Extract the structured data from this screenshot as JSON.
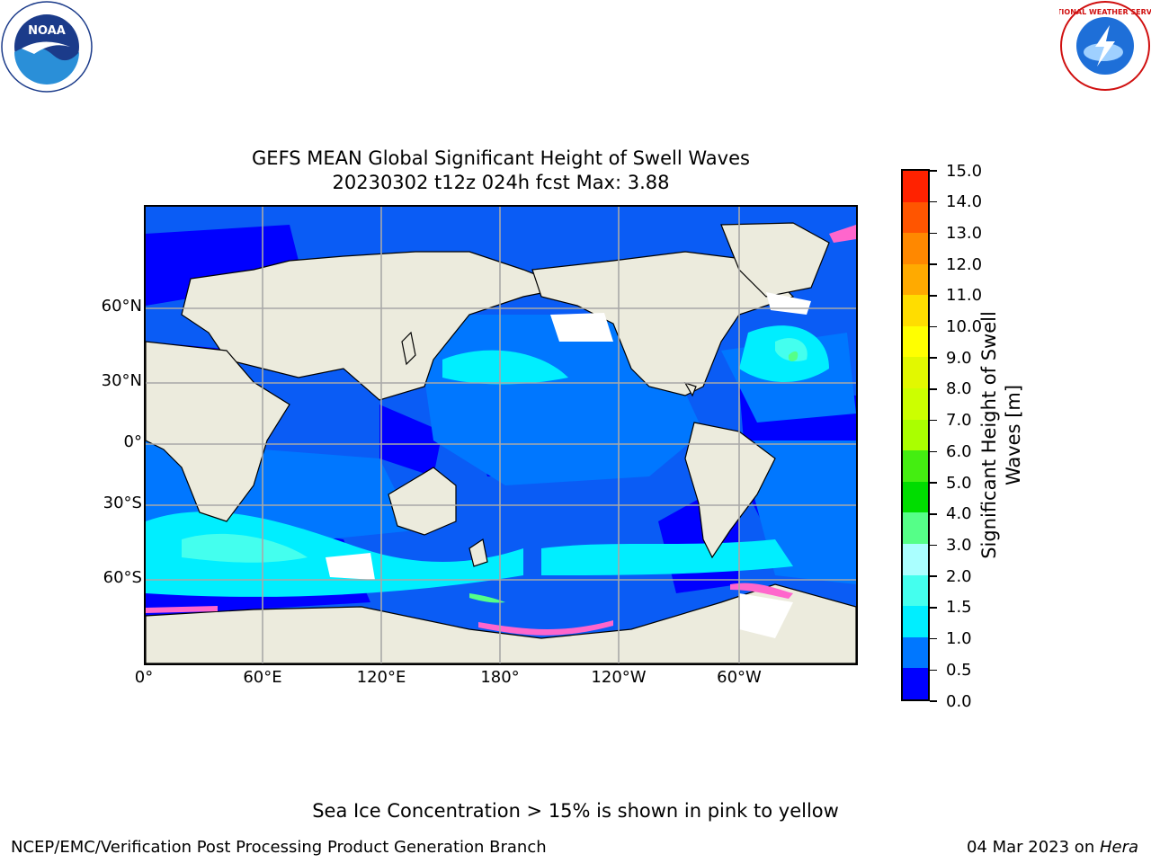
{
  "title_line1": "GEFS MEAN Global Significant Height of Swell Waves",
  "title_line2": "20230302 t12z 024h fcst   Max: 3.88",
  "map": {
    "lat_labels": [
      "60°N",
      "30°N",
      "0°",
      "30°S",
      "60°S"
    ],
    "lon_labels": [
      "0°",
      "60°E",
      "120°E",
      "180°",
      "120°W",
      "60°W"
    ]
  },
  "colorbar": {
    "title_line1": "Significant Height of Swell",
    "title_line2": "Waves [m]",
    "ticks": [
      "0.0",
      "0.5",
      "1.0",
      "1.5",
      "2.0",
      "3.0",
      "4.0",
      "5.0",
      "6.0",
      "7.0",
      "8.0",
      "9.0",
      "10.0",
      "11.0",
      "12.0",
      "13.0",
      "14.0",
      "15.0"
    ],
    "colors": [
      "#0000ff",
      "#0077ff",
      "#00eeff",
      "#44ffee",
      "#aaffff",
      "#55ff88",
      "#00dd00",
      "#44ee11",
      "#aaff00",
      "#ccff00",
      "#e2f800",
      "#ffff00",
      "#ffdd00",
      "#ffaa00",
      "#ff8800",
      "#ff5500",
      "#ff2200"
    ]
  },
  "note": "Sea Ice Concentration > 15% is shown in pink to yellow",
  "footer": {
    "left": "NCEP/EMC/Verification Post Processing Product Generation Branch",
    "right_date": "04 Mar 2023 on ",
    "right_host": "Hera"
  },
  "logos": {
    "noaa_text": "NOAA",
    "nws_text": "NATIONAL WEATHER SERVICE"
  }
}
